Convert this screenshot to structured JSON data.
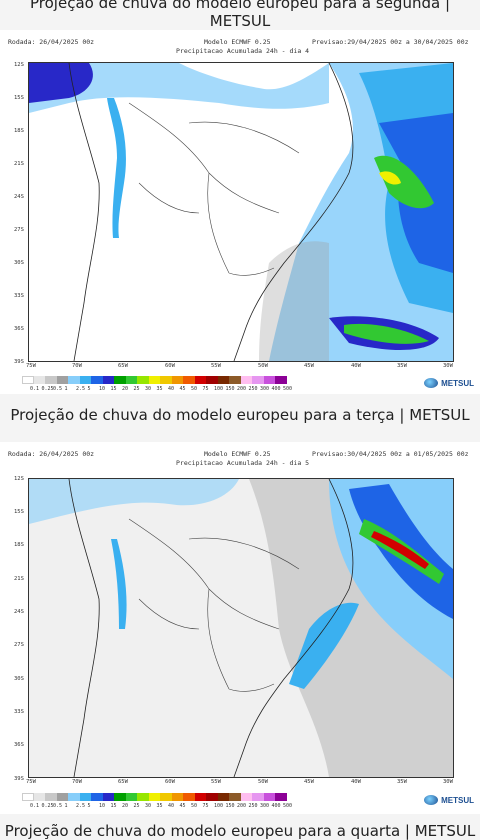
{
  "captions": [
    "Projeção de chuva do modelo europeu para a segunda | METSUL",
    "Projeção de chuva do modelo europeu para a terça | METSUL",
    "Projeção de chuva do modelo europeu para a quarta | METSUL"
  ],
  "maps": [
    {
      "rodada": "Rodada: 26/04/2025 00z",
      "modelo": "Modelo ECMWF 0.25",
      "previsao": "Previsao:29/04/2025 00z a 30/04/2025 00z",
      "subtitle": "Precipitacao Acumulada 24h - dia 4"
    },
    {
      "rodada": "Rodada: 26/04/2025 00z",
      "modelo": "Modelo ECMWF 0.25",
      "previsao": "Previsao:30/04/2025 00z a 01/05/2025 00z",
      "subtitle": "Precipitacao Acumulada 24h - dia 5"
    }
  ],
  "lat_labels": [
    "12S",
    "15S",
    "18S",
    "21S",
    "24S",
    "27S",
    "30S",
    "33S",
    "36S",
    "39S"
  ],
  "lon_labels": [
    "75W",
    "70W",
    "65W",
    "60W",
    "55W",
    "50W",
    "45W",
    "40W",
    "35W",
    "30W"
  ],
  "legend_levels": [
    "0.1",
    "0.25",
    "0.5",
    "1",
    "2.5",
    "5",
    "10",
    "15",
    "20",
    "25",
    "30",
    "35",
    "40",
    "45",
    "50",
    "75",
    "100",
    "150",
    "200",
    "250",
    "300",
    "400",
    "500"
  ],
  "legend_colors": [
    "#ffffff",
    "#e6e6e6",
    "#c8c8c8",
    "#a0a0a0",
    "#87cefa",
    "#3ab0f0",
    "#1e64e6",
    "#2828c8",
    "#00a000",
    "#32c832",
    "#96e600",
    "#f0f000",
    "#f0c800",
    "#f09600",
    "#f05a00",
    "#d20000",
    "#a00000",
    "#782800",
    "#8c5a28",
    "#ffbef0",
    "#e696f0",
    "#c850dc",
    "#8c0096"
  ],
  "logo": "METSUL",
  "icons": {
    "logo": "metsul-globe-icon"
  }
}
